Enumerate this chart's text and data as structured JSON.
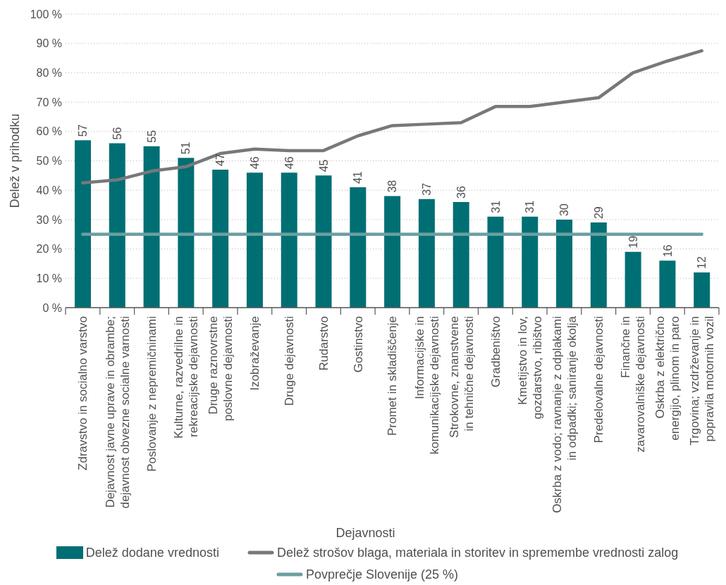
{
  "chart_data": {
    "type": "bar",
    "xlabel": "Dejavnosti",
    "ylabel": "Delež v prihodku",
    "categories": [
      "Zdravstvo in socialno varstvo",
      "Dejavnost javne uprave in obrambe; dejavnost obvezne socialne varnosti",
      "Poslovanje z nepremičninami",
      "Kulturne, razvedrilne in rekreacijske dejavnosti",
      "Druge raznovrstne poslovne dejavnosti",
      "Izobraževanje",
      "Druge dejavnosti",
      "Rudarstvo",
      "Gostinstvo",
      "Promet in skladiščenje",
      "Informacijske in komunikacijske dejavnosti",
      "Strokovne, znanstvene in tehnične dejavnosti",
      "Gradbeništvo",
      "Kmetijstvo in lov, gozdarstvo, ribištvo",
      "Oskrba z vodo; ravnanje z odplakami in odpadki; saniranje okolja",
      "Predelovalne dejavnosti",
      "Finančne in zavarovalniške dejavnosti",
      "Oskrba z električno energijo, plinom in paro",
      "Trgovina; vzdrževanje in popravila motornih vozil"
    ],
    "series": [
      {
        "name": "Delež dodane vrednosti",
        "color": "#006f74",
        "values": [
          57,
          56,
          55,
          51,
          47,
          46,
          46,
          45,
          41,
          38,
          37,
          36,
          31,
          31,
          30,
          29,
          19,
          16,
          12
        ],
        "value_labels": [
          "57",
          "56",
          "55",
          "51",
          "47",
          "46",
          "46",
          "45",
          "41",
          "38",
          "37",
          "36",
          "31",
          "31",
          "30",
          "29",
          "19",
          "16",
          "12"
        ]
      },
      {
        "name": "Delež strošov blaga, materiala in storitev in spremembe vrednosti zalog",
        "type": "line",
        "color": "#77787b",
        "values": [
          42.5,
          43.5,
          46.5,
          48,
          52.5,
          54,
          53.5,
          53.5,
          58.5,
          62,
          62.5,
          63,
          68.5,
          68.5,
          70,
          71.5,
          80,
          84,
          87.5
        ]
      },
      {
        "name": "Povprečje Slovenije (25 %)",
        "type": "line",
        "color": "#6b9fa1",
        "values": [
          25,
          25,
          25,
          25,
          25,
          25,
          25,
          25,
          25,
          25,
          25,
          25,
          25,
          25,
          25,
          25,
          25,
          25,
          25
        ]
      }
    ],
    "ylim": [
      0,
      100
    ],
    "yticks": [
      {
        "value": 0,
        "label": "0 %"
      },
      {
        "value": 10,
        "label": "10 %"
      },
      {
        "value": 20,
        "label": "20 %"
      },
      {
        "value": 30,
        "label": "30 %"
      },
      {
        "value": 40,
        "label": "40 %"
      },
      {
        "value": 50,
        "label": "50 %"
      },
      {
        "value": 60,
        "label": "60 %"
      },
      {
        "value": 70,
        "label": "70 %"
      },
      {
        "value": 80,
        "label": "80 %"
      },
      {
        "value": 90,
        "label": "90 %"
      },
      {
        "value": 100,
        "label": "100 %"
      }
    ],
    "grid": "y",
    "legend": "bottom"
  }
}
